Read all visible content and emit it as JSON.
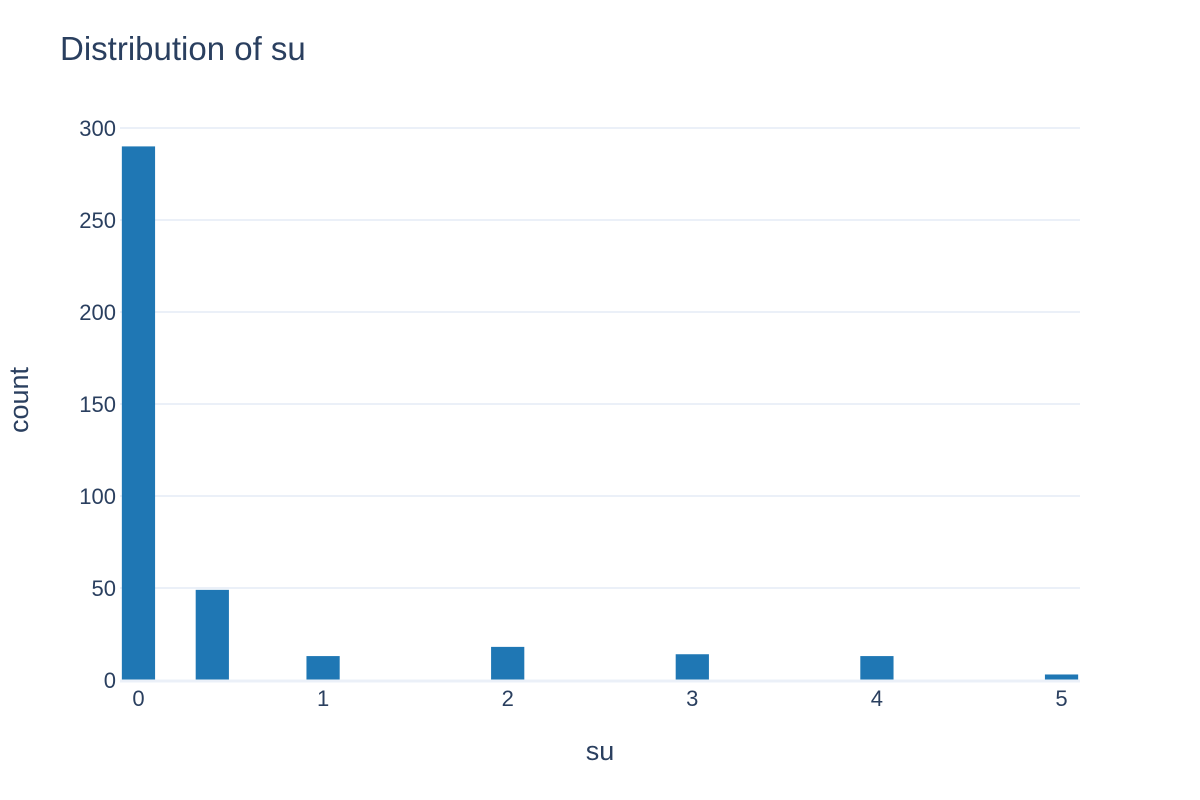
{
  "chart_data": {
    "type": "bar",
    "title": "Distribution of su",
    "xlabel": "su",
    "ylabel": "count",
    "x": [
      0,
      0.4,
      1,
      2,
      3,
      4,
      5
    ],
    "values": [
      290,
      49,
      13,
      18,
      14,
      13,
      3
    ],
    "bin_width": 0.2,
    "xlim": [
      -0.1,
      5.1
    ],
    "ylim": [
      0,
      300
    ],
    "x_ticks": [
      0,
      1,
      2,
      3,
      4,
      5
    ],
    "y_ticks": [
      0,
      50,
      100,
      150,
      200,
      250,
      300
    ],
    "grid": true,
    "bar_color": "#1f77b4"
  }
}
